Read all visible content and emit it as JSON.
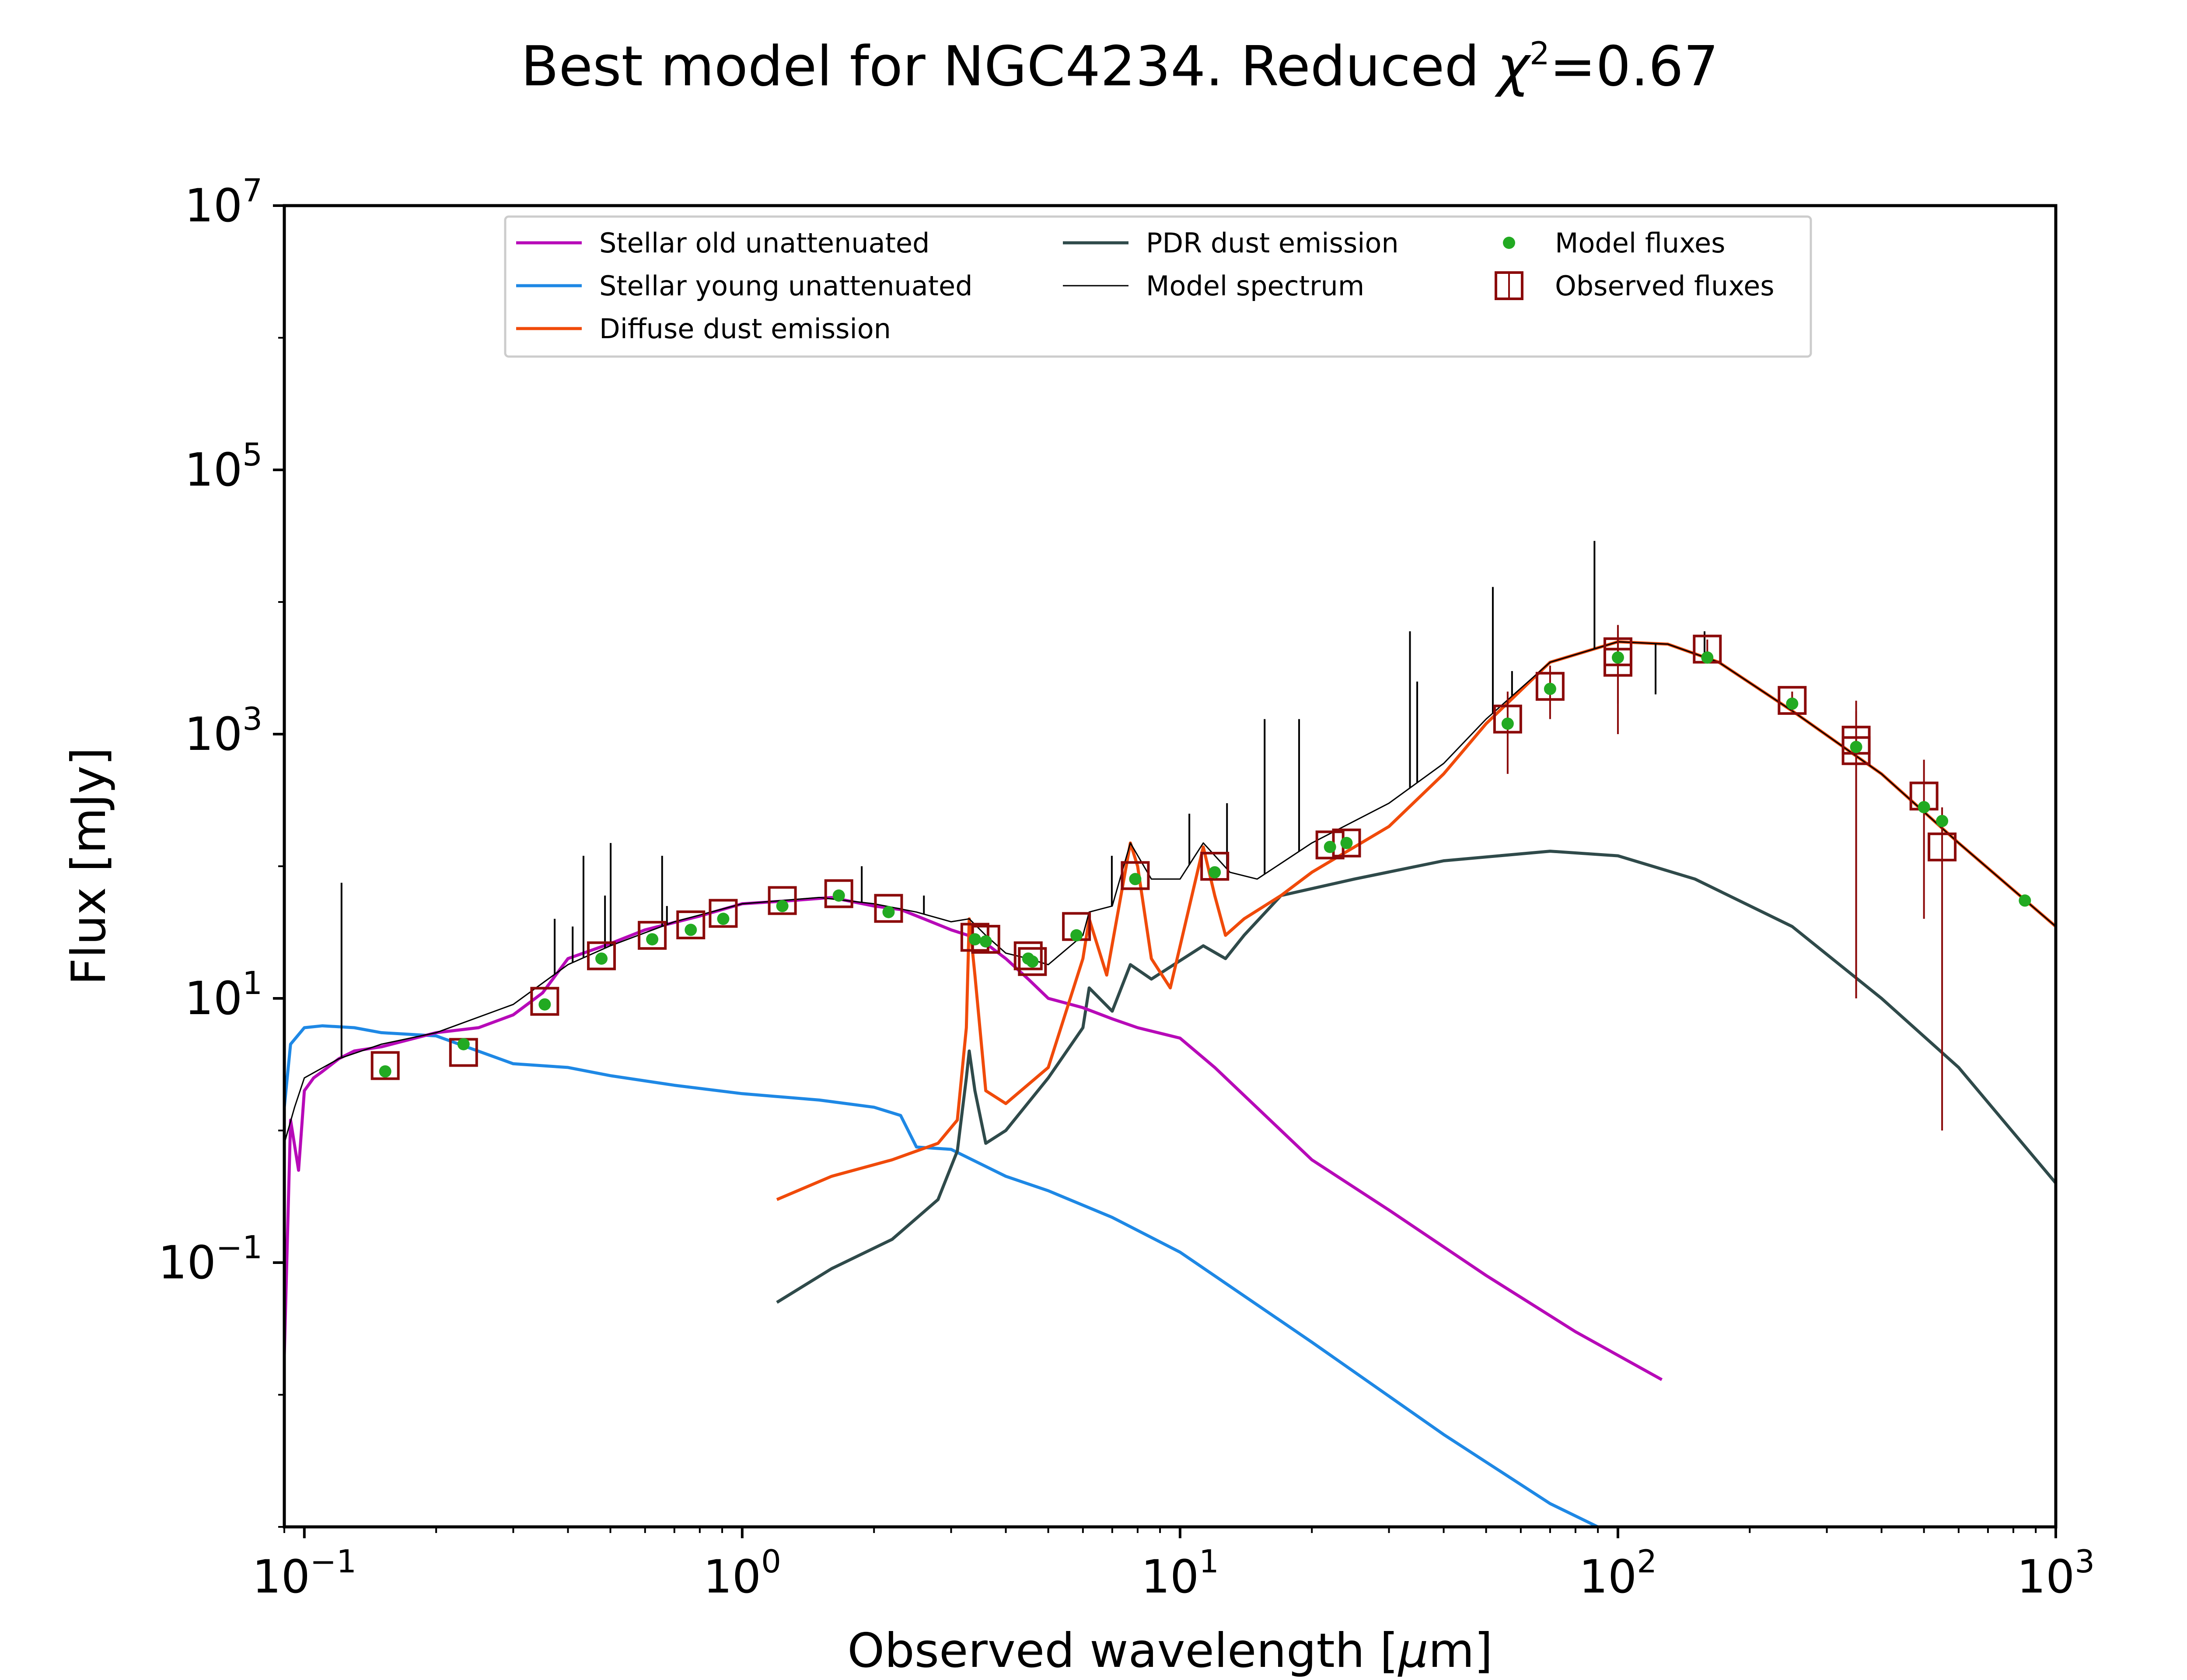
{
  "chart_data": {
    "type": "line",
    "title": "Best model for NGC4234. Reduced χ²=0.67",
    "title_parts": {
      "lead": "Best model for NGC4234. Reduced ",
      "chi": "χ",
      "sup": "2",
      "tail": "=0.67"
    },
    "xlabel": "Observed wavelength [μm]",
    "xlabel_parts": {
      "lead": "Observed wavelength [",
      "mu": "μ",
      "tail": "m]"
    },
    "ylabel": "Flux [mJy]",
    "xscale": "log",
    "yscale": "log",
    "xlim": [
      0.09,
      1000
    ],
    "ylim": [
      0.001,
      10000000
    ],
    "x_ticks": [
      {
        "value": 0.1,
        "base": "10",
        "exp": "−1"
      },
      {
        "value": 1,
        "base": "10",
        "exp": "0"
      },
      {
        "value": 10,
        "base": "10",
        "exp": "1"
      },
      {
        "value": 100,
        "base": "10",
        "exp": "2"
      },
      {
        "value": 1000,
        "base": "10",
        "exp": "3"
      }
    ],
    "y_ticks": [
      {
        "value": 0.1,
        "base": "10",
        "exp": "−1"
      },
      {
        "value": 10,
        "base": "10",
        "exp": "1"
      },
      {
        "value": 1000,
        "base": "10",
        "exp": "3"
      },
      {
        "value": 100000,
        "base": "10",
        "exp": "5"
      },
      {
        "value": 10000000,
        "base": "10",
        "exp": "7"
      }
    ],
    "grid": false,
    "legend_position": "top-center",
    "series": [
      {
        "name": "Stellar old unattenuated",
        "kind": "line",
        "color": "#b70ab8",
        "width": 7,
        "x": [
          0.09,
          0.093,
          0.097,
          0.1,
          0.105,
          0.11,
          0.12,
          0.13,
          0.15,
          0.2,
          0.25,
          0.3,
          0.35,
          0.4,
          0.5,
          0.6,
          0.8,
          1.0,
          1.3,
          1.6,
          2.0,
          2.3,
          2.6,
          3.0,
          3.5,
          4.0,
          4.5,
          5.0,
          6.0,
          7.0,
          8.0,
          10,
          12,
          20,
          30,
          50,
          80,
          126
        ],
        "y": [
          0.02,
          1.2,
          0.5,
          2.0,
          2.5,
          2.8,
          3.5,
          4.0,
          4.3,
          5.5,
          6.0,
          7.5,
          11,
          20,
          26,
          33,
          42,
          52,
          55,
          58,
          50,
          47,
          40,
          33,
          28,
          20,
          14,
          10,
          8.5,
          7.0,
          6.0,
          5.0,
          3.0,
          0.6,
          0.25,
          0.08,
          0.03,
          0.013
        ]
      },
      {
        "name": "Stellar young unattenuated",
        "kind": "line",
        "color": "#1e88e5",
        "width": 7,
        "x": [
          0.09,
          0.093,
          0.1,
          0.11,
          0.13,
          0.15,
          0.2,
          0.3,
          0.4,
          0.5,
          0.7,
          1.0,
          1.5,
          2.0,
          2.3,
          2.5,
          3.0,
          4.0,
          5.0,
          7.0,
          10,
          20,
          40,
          70,
          90
        ],
        "y": [
          1.5,
          4.5,
          6.0,
          6.2,
          6.0,
          5.5,
          5.2,
          3.2,
          3.0,
          2.6,
          2.2,
          1.9,
          1.7,
          1.5,
          1.3,
          0.75,
          0.72,
          0.45,
          0.35,
          0.22,
          0.12,
          0.025,
          0.005,
          0.0015,
          0.001
        ]
      },
      {
        "name": "Diffuse dust emission",
        "kind": "line",
        "color": "#f04a0a",
        "width": 7,
        "x": [
          1.2,
          1.6,
          2.2,
          2.8,
          3.1,
          3.25,
          3.3,
          3.4,
          3.6,
          4.0,
          5.0,
          6.0,
          6.2,
          6.8,
          7.7,
          8.0,
          8.6,
          9.5,
          11.3,
          12.0,
          12.7,
          14.0,
          17,
          20,
          30,
          40,
          50,
          70,
          100,
          130,
          170,
          250,
          400,
          600,
          1000
        ],
        "y": [
          0.3,
          0.45,
          0.6,
          0.8,
          1.2,
          6.0,
          40,
          15,
          2.0,
          1.6,
          3.0,
          20,
          40,
          15,
          150,
          100,
          20,
          12,
          140,
          60,
          30,
          40,
          60,
          90,
          200,
          500,
          1200,
          3500,
          5000,
          4800,
          3500,
          1500,
          500,
          150,
          35
        ]
      },
      {
        "name": "PDR dust emission",
        "kind": "line",
        "color": "#2f4a4a",
        "width": 7,
        "x": [
          1.2,
          1.6,
          2.2,
          2.8,
          3.1,
          3.25,
          3.3,
          3.4,
          3.6,
          4.0,
          5.0,
          6.0,
          6.2,
          7.0,
          7.7,
          8.6,
          11.3,
          12.7,
          14,
          17,
          25,
          40,
          70,
          100,
          150,
          250,
          400,
          600,
          1000
        ],
        "y": [
          0.05,
          0.09,
          0.15,
          0.3,
          0.7,
          2.5,
          4.0,
          2.0,
          0.8,
          1.0,
          2.5,
          6.0,
          12,
          8,
          18,
          14,
          25,
          20,
          30,
          60,
          80,
          110,
          130,
          120,
          80,
          35,
          10,
          3,
          0.4
        ]
      },
      {
        "name": "Model spectrum",
        "kind": "line",
        "color": "#000000",
        "width": 3,
        "x": [
          0.09,
          0.095,
          0.1,
          0.12,
          0.15,
          0.2,
          0.3,
          0.4,
          0.5,
          0.7,
          1.0,
          1.5,
          2.0,
          2.5,
          3.0,
          3.3,
          3.6,
          4.0,
          4.5,
          5.0,
          6.0,
          6.2,
          7.0,
          7.7,
          8.6,
          10,
          11.3,
          13,
          15,
          20,
          30,
          40,
          50,
          70,
          100,
          130,
          170,
          250,
          400,
          600,
          1000
        ],
        "y": [
          0.8,
          1.5,
          2.5,
          3.5,
          4.5,
          5.5,
          9.0,
          18,
          25,
          38,
          52,
          58,
          52,
          45,
          38,
          40,
          30,
          22,
          20,
          18,
          30,
          45,
          50,
          150,
          80,
          80,
          150,
          90,
          80,
          150,
          300,
          600,
          1300,
          3500,
          5000,
          4800,
          3500,
          1500,
          500,
          150,
          35
        ],
        "emission_lines": [
          {
            "x": 0.1216,
            "y": 75
          },
          {
            "x": 0.373,
            "y": 40
          },
          {
            "x": 0.41,
            "y": 35
          },
          {
            "x": 0.434,
            "y": 120
          },
          {
            "x": 0.486,
            "y": 60
          },
          {
            "x": 0.5007,
            "y": 150
          },
          {
            "x": 0.6563,
            "y": 120
          },
          {
            "x": 0.6731,
            "y": 50
          },
          {
            "x": 1.875,
            "y": 100
          },
          {
            "x": 2.6,
            "y": 60
          },
          {
            "x": 6.985,
            "y": 120
          },
          {
            "x": 8.99,
            "y": 80
          },
          {
            "x": 10.5,
            "y": 250
          },
          {
            "x": 12.8,
            "y": 300
          },
          {
            "x": 15.6,
            "y": 1300
          },
          {
            "x": 18.7,
            "y": 1300
          },
          {
            "x": 33.5,
            "y": 6000
          },
          {
            "x": 34.8,
            "y": 2500
          },
          {
            "x": 51.8,
            "y": 13000
          },
          {
            "x": 57.3,
            "y": 3000
          },
          {
            "x": 88.4,
            "y": 29000
          },
          {
            "x": 121.9,
            "y": 2000
          },
          {
            "x": 157.7,
            "y": 6000
          }
        ]
      },
      {
        "name": "Model fluxes",
        "kind": "points",
        "color": "#22aa22",
        "x": [
          0.153,
          0.231,
          0.354,
          0.477,
          0.623,
          0.763,
          0.905,
          1.235,
          1.662,
          2.159,
          3.4,
          3.6,
          4.5,
          4.6,
          5.8,
          7.9,
          12,
          22,
          24,
          56,
          70,
          100,
          160,
          250,
          350,
          500,
          550,
          850
        ],
        "y": [
          2.8,
          4.5,
          9.0,
          20,
          28,
          33,
          40,
          50,
          60,
          45,
          28,
          27,
          20,
          19,
          30,
          80,
          90,
          140,
          150,
          1200,
          2200,
          3800,
          3800,
          1700,
          800,
          280,
          220,
          55
        ]
      },
      {
        "name": "Observed fluxes",
        "kind": "points_err",
        "color": "#8b0a0a",
        "x": [
          0.153,
          0.231,
          0.354,
          0.477,
          0.623,
          0.763,
          0.905,
          1.235,
          1.662,
          2.159,
          3.4,
          3.6,
          4.5,
          4.6,
          5.8,
          7.9,
          12,
          22,
          24,
          56,
          70,
          100,
          100,
          160,
          250,
          350,
          350,
          500,
          550
        ],
        "y": [
          3.1,
          3.9,
          9.5,
          21,
          30,
          36,
          44,
          55,
          62,
          48,
          29,
          28,
          21,
          19,
          35,
          85,
          100,
          145,
          150,
          1300,
          2300,
          4200,
          3500,
          4400,
          1800,
          900,
          750,
          340,
          140
        ],
        "err": [
          0,
          0,
          0,
          0,
          0,
          0,
          0,
          0,
          0,
          0,
          0,
          0,
          0,
          0,
          0,
          0,
          0,
          0,
          0,
          800,
          1000,
          2500,
          2500,
          800,
          300,
          890,
          740,
          300,
          139
        ]
      }
    ]
  }
}
